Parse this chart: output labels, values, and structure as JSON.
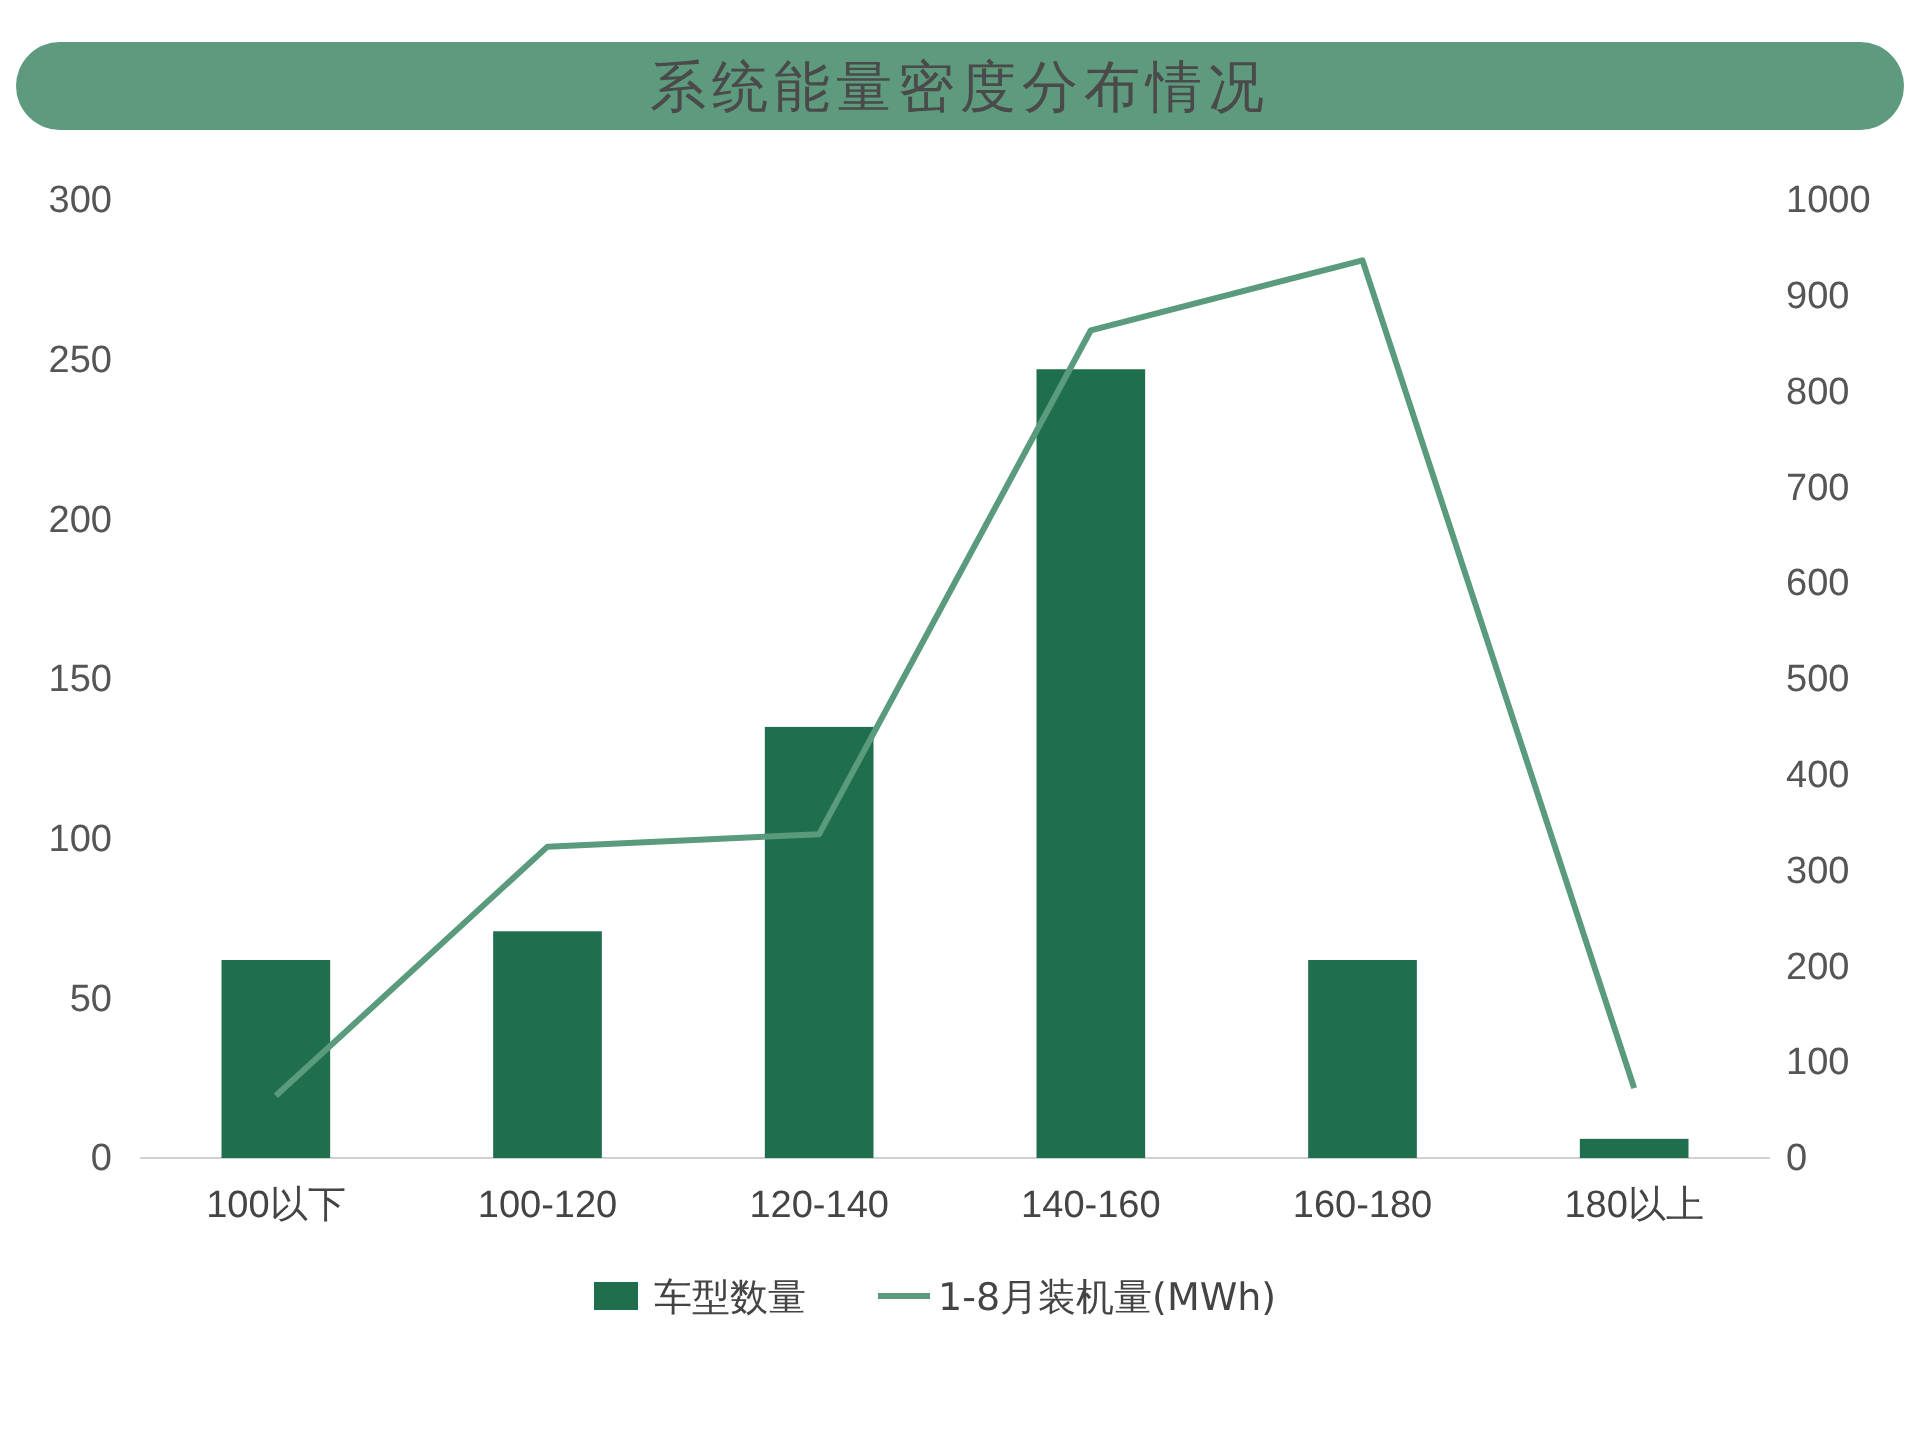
{
  "chart_data": {
    "type": "bar",
    "title": "系统能量密度分布情况",
    "categories": [
      "100以下",
      "100-120",
      "120-140",
      "140-160",
      "160-180",
      "180以上"
    ],
    "series": [
      {
        "name": "车型数量",
        "color": "#1f6e4e",
        "values": [
          62,
          71,
          135,
          247,
          62,
          6
        ]
      },
      {
        "name": "1-8月装机量(MWh)",
        "type": "line",
        "axis": "y2",
        "color": "#5a9a7d",
        "values": [
          65,
          325,
          338,
          864,
          937,
          73
        ]
      }
    ],
    "ylim": [
      0,
      300
    ],
    "yticks": [
      0,
      50,
      100,
      150,
      200,
      250,
      300
    ],
    "y2lim": [
      0,
      1000
    ],
    "y2ticks": [
      0,
      100,
      200,
      300,
      400,
      500,
      600,
      700,
      800,
      900,
      1000
    ],
    "grid": false,
    "legend": "bottom",
    "marker": "none",
    "line_style": "solid"
  }
}
